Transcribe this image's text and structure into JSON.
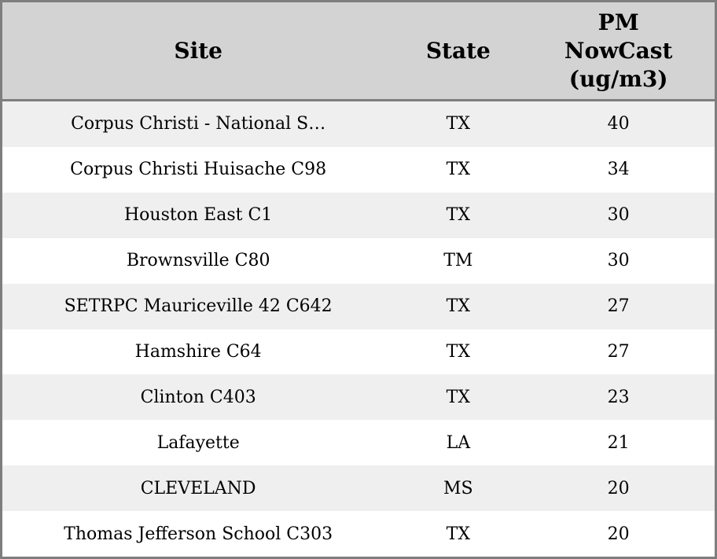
{
  "header": {
    "site": "Site",
    "state": "State",
    "pm_lines": [
      "PM",
      "NowCast",
      "(ug/m3)"
    ]
  },
  "rows": [
    {
      "site": "Corpus Christi - National S…",
      "state": "TX",
      "value": "40"
    },
    {
      "site": "Corpus Christi Huisache C98",
      "state": "TX",
      "value": "34"
    },
    {
      "site": "Houston East C1",
      "state": "TX",
      "value": "30"
    },
    {
      "site": "Brownsville C80",
      "state": "TM",
      "value": "30"
    },
    {
      "site": "SETRPC Mauriceville 42 C642",
      "state": "TX",
      "value": "27"
    },
    {
      "site": "Hamshire C64",
      "state": "TX",
      "value": "27"
    },
    {
      "site": "Clinton C403",
      "state": "TX",
      "value": "23"
    },
    {
      "site": "Lafayette",
      "state": "LA",
      "value": "21"
    },
    {
      "site": "CLEVELAND",
      "state": "MS",
      "value": "20"
    },
    {
      "site": "Thomas Jefferson School C303",
      "state": "TX",
      "value": "20"
    }
  ],
  "colors": {
    "border": "#7e7e7e",
    "header_bg": "#d3d3d3",
    "row_odd_bg": "#efefef",
    "row_even_bg": "#ffffff",
    "text": "#000000"
  },
  "chart_data": {
    "type": "table",
    "columns": [
      "Site",
      "State",
      "PM NowCast (ug/m3)"
    ],
    "rows": [
      [
        "Corpus Christi - National S…",
        "TX",
        40
      ],
      [
        "Corpus Christi Huisache C98",
        "TX",
        34
      ],
      [
        "Houston East C1",
        "TX",
        30
      ],
      [
        "Brownsville C80",
        "TM",
        30
      ],
      [
        "SETRPC Mauriceville 42 C642",
        "TX",
        27
      ],
      [
        "Hamshire C64",
        "TX",
        27
      ],
      [
        "Clinton C403",
        "TX",
        23
      ],
      [
        "Lafayette",
        "LA",
        21
      ],
      [
        "CLEVELAND",
        "MS",
        20
      ],
      [
        "Thomas Jefferson School C303",
        "TX",
        20
      ]
    ],
    "layout": {
      "header_background": "#d3d3d3",
      "striped_rows": true,
      "text_align": "center",
      "sorted_by": "PM NowCast (ug/m3) descending"
    }
  }
}
